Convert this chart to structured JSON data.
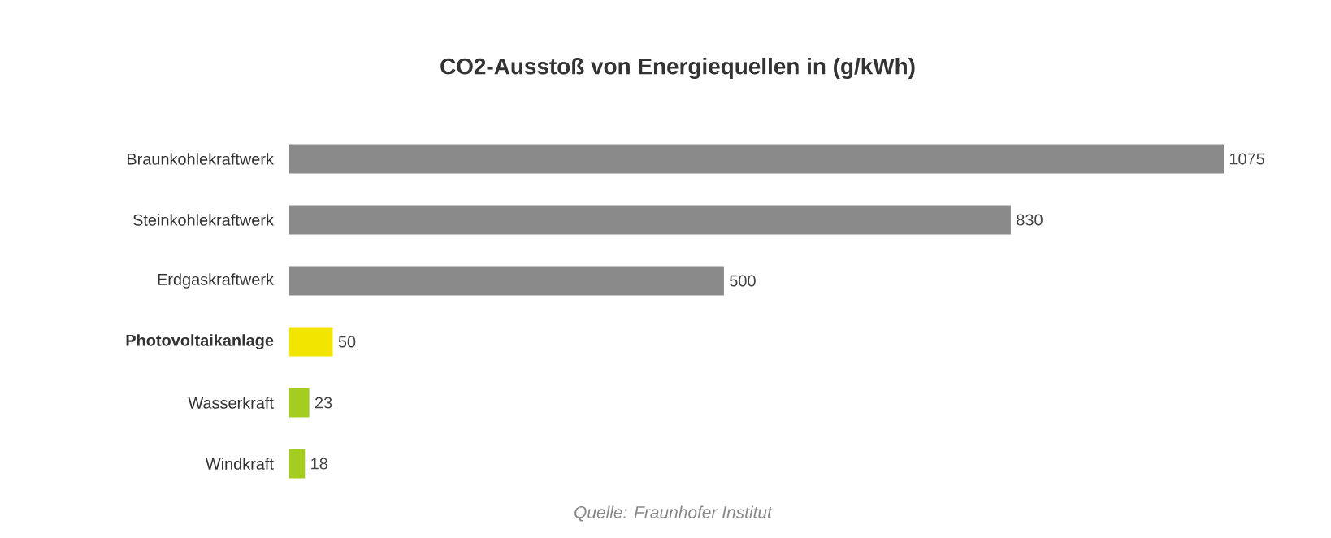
{
  "chart_data": {
    "type": "bar",
    "orientation": "horizontal",
    "title": "CO2-Ausstoß von Energiequellen in (g/kWh)",
    "categories": [
      "Braunkohlekraftwerk",
      "Steinkohlekraftwerk",
      "Erdgaskraftwerk",
      "**Photovoltaikanlage**",
      "Wasserkraft",
      "Windkraft"
    ],
    "values": [
      1075,
      830,
      500,
      50,
      23,
      18
    ],
    "colors": [
      "#8a8a8a",
      "#8a8a8a",
      "#8a8a8a",
      "#f2e600",
      "#a3cd1f",
      "#a3cd1f"
    ],
    "data_labels": true,
    "annotations": [
      "Quelle: Fraunhofer Institut"
    ]
  }
}
